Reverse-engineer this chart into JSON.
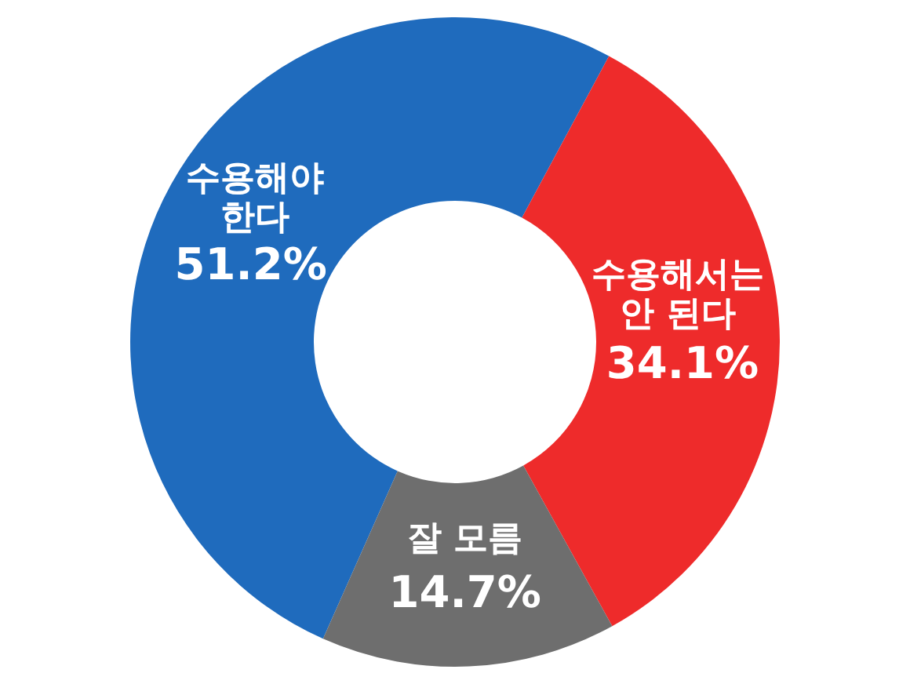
{
  "chart_data": {
    "type": "donut",
    "categories": [
      "수용해야\n한다",
      "수용해서는\n안 된다",
      "잘 모름"
    ],
    "values": [
      51.2,
      34.1,
      14.7
    ],
    "colors": [
      "#1f6bbd",
      "#ee2b2b",
      "#6e6e6e"
    ],
    "value_labels": [
      "51.2%",
      "34.1%",
      "14.7%"
    ]
  }
}
